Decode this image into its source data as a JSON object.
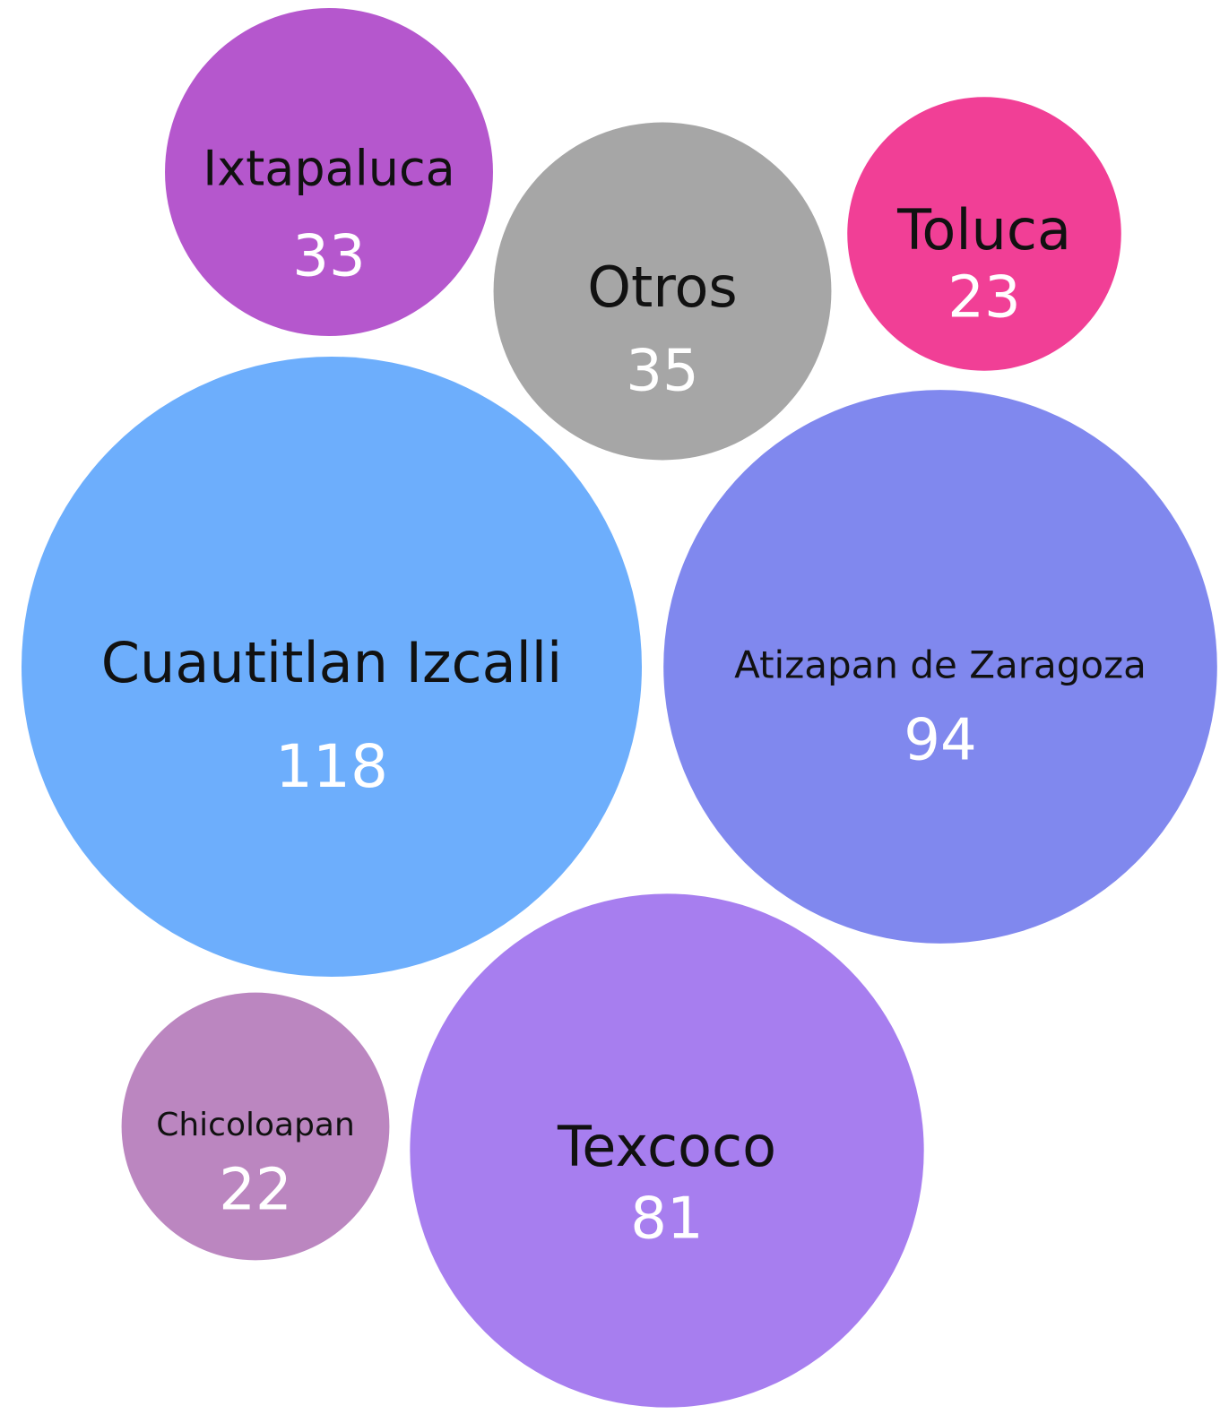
{
  "chart_data": {
    "type": "bubble",
    "categories": [
      "Cuautitlan Izcalli",
      "Atizapan de Zaragoza",
      "Texcoco",
      "Chicoloapan",
      "Ixtapaluca",
      "Otros",
      "Toluca"
    ],
    "values": [
      118,
      94,
      81,
      22,
      33,
      35,
      23
    ],
    "colors": [
      "#6daefc",
      "#8088ee",
      "#a77eef",
      "#bb86c0",
      "#b557cd",
      "#a6a6a6",
      "#f13f96"
    ]
  }
}
